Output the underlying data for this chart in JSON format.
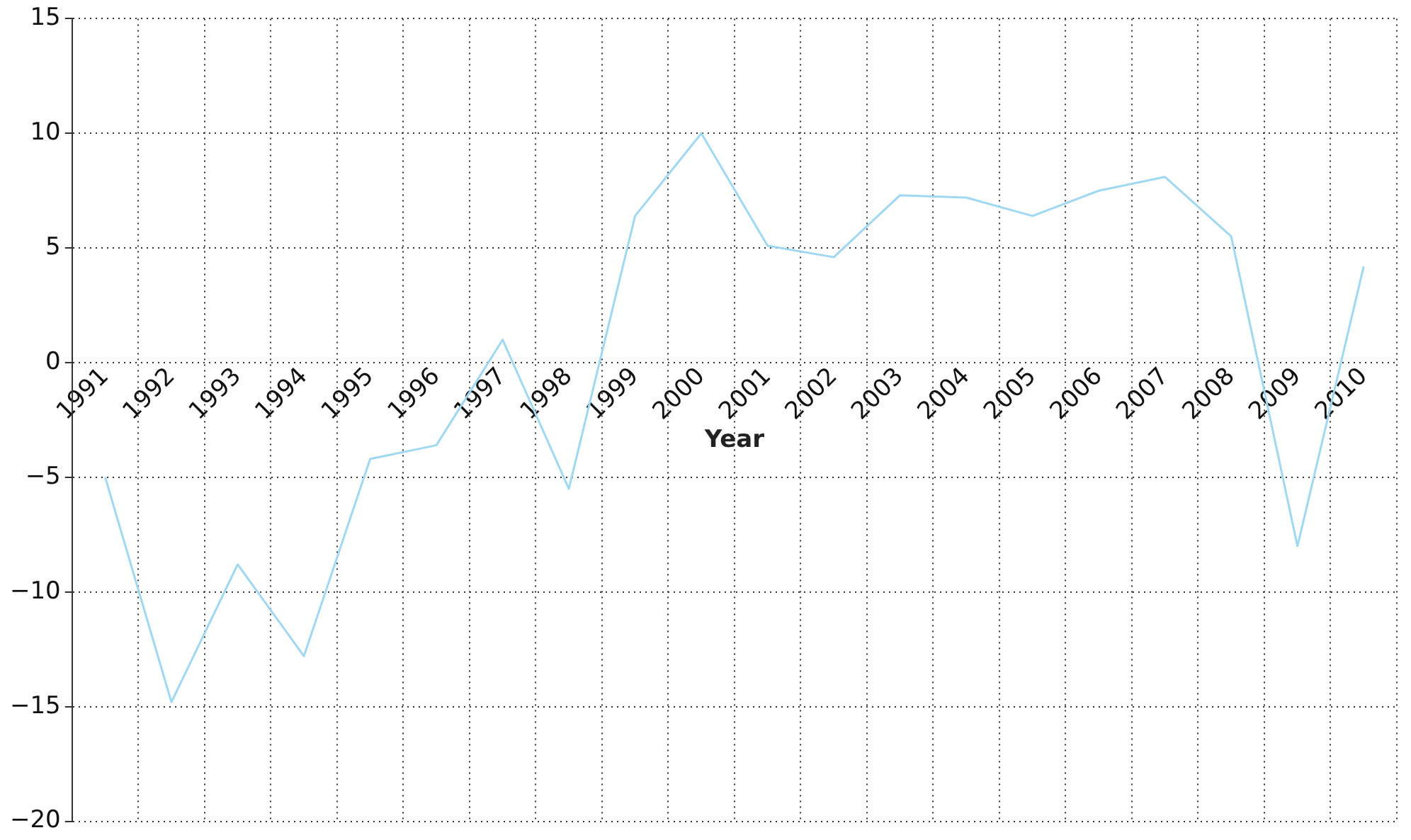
{
  "chart_data": {
    "type": "line",
    "xlabel": "Year",
    "categories": [
      "1991",
      "1992",
      "1993",
      "1994",
      "1995",
      "1996",
      "1997",
      "1998",
      "1999",
      "2000",
      "2001",
      "2002",
      "2003",
      "2004",
      "2005",
      "2006",
      "2007",
      "2008",
      "2009",
      "2010"
    ],
    "series": [
      {
        "color": "#9fd8f0",
        "values": [
          -5.0,
          -14.8,
          -8.8,
          -12.8,
          -4.2,
          -3.6,
          1.0,
          -5.5,
          6.4,
          10.0,
          5.1,
          4.6,
          7.3,
          7.2,
          6.4,
          7.5,
          8.1,
          5.5,
          -8.0,
          4.2
        ]
      }
    ],
    "ylim": [
      -20,
      15
    ],
    "yticks": [
      -20,
      -15,
      -10,
      -5,
      0,
      5,
      10,
      15
    ],
    "grid": true,
    "marker": "none"
  }
}
